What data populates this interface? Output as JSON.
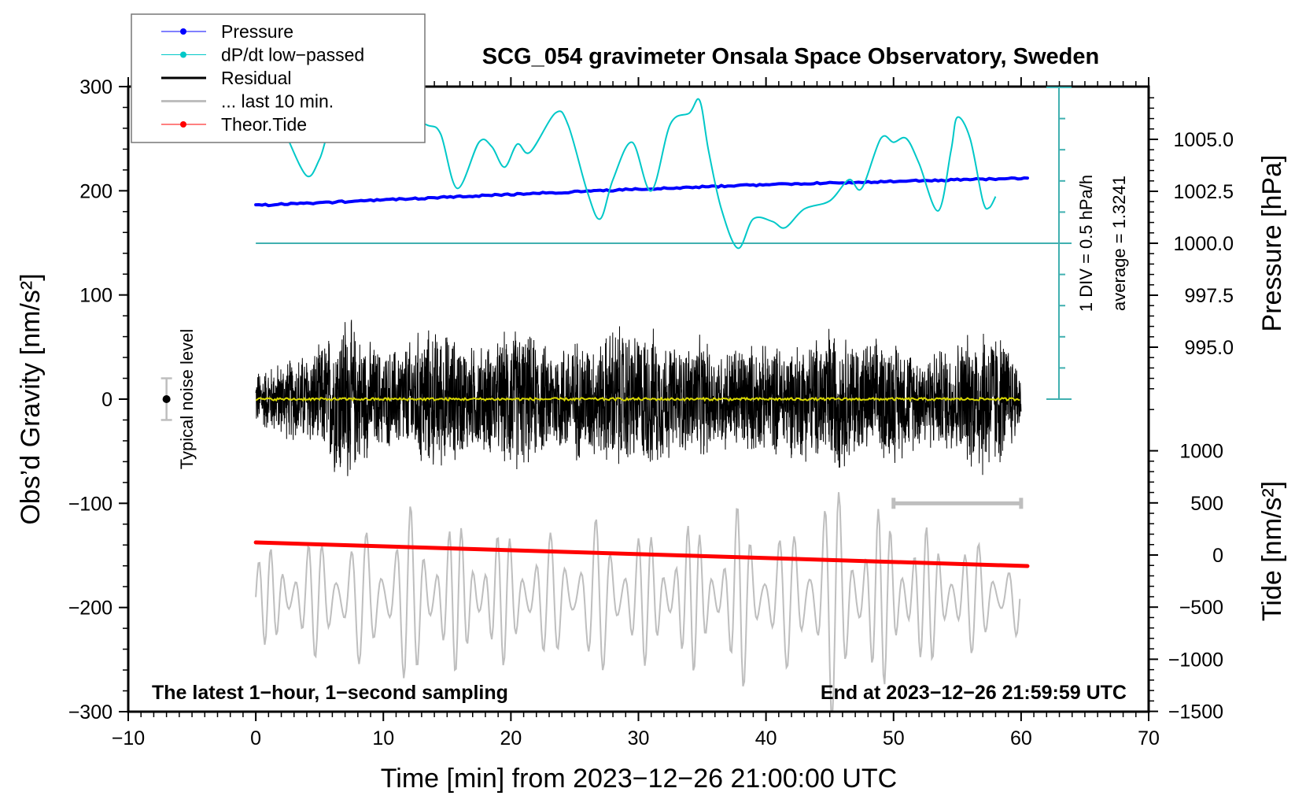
{
  "chart_data": {
    "type": "line",
    "title": "SCG_054 gravimeter Onsala Space Observatory, Sweden",
    "xlabel": "Time [min] from 2023−12−26 21:00:00 UTC",
    "ylabel_left": "Obs’d Gravity [nm/s²]",
    "ylabel_right_pressure": "Pressure [hPa]",
    "ylabel_right_tide": "Tide [nm/s²]",
    "xlim": [
      -10,
      70
    ],
    "ylim": [
      -300,
      300
    ],
    "x_ticks": [
      "−10",
      "0",
      "10",
      "20",
      "30",
      "40",
      "50",
      "60",
      "70"
    ],
    "y_ticks": [
      "300",
      "200",
      "100",
      "0",
      "−100",
      "−200",
      "−300"
    ],
    "pressure_ticks": [
      "1005.0",
      "1002.5",
      "1000.0",
      "997.5",
      "995.0"
    ],
    "tide_ticks": [
      "1000",
      "500",
      "0",
      "−500",
      "−1000",
      "−1500"
    ],
    "legend": {
      "placement": "top-left",
      "entries": [
        {
          "label": "Pressure",
          "color": "#0000ff",
          "marker": "dot"
        },
        {
          "label": "dP/dt low−passed",
          "color": "#00c8c8",
          "marker": "dot"
        },
        {
          "label": "Residual",
          "color": "#000000",
          "marker": "line"
        },
        {
          "label": "... last 10 min.",
          "color": "#bebebe",
          "marker": "line"
        },
        {
          "label": "Theor.Tide",
          "color": "#ff0000",
          "marker": "dot"
        }
      ]
    },
    "annotations": {
      "bottom_left": "The latest 1−hour, 1−second sampling",
      "bottom_right": "End at 2023−12−26 21:59:59 UTC",
      "dpdt_scale": "1 DIV = 0.5 hPa/h",
      "dpdt_average": "average = 1.3241",
      "noise_label": "Typical noise level"
    },
    "noise_level": {
      "x": -7,
      "center": 0,
      "half_range": 20
    },
    "last10_scale_bar": {
      "x_range": [
        50,
        60
      ],
      "y": -100
    },
    "pressure": {
      "x": [
        0,
        10,
        20,
        30,
        40,
        50,
        60.5
      ],
      "values": [
        1001.82,
        1002.08,
        1002.35,
        1002.6,
        1002.82,
        1002.98,
        1003.14
      ]
    },
    "dpdt": {
      "unit": "hPa/h",
      "x": [
        2.5,
        4,
        5,
        6,
        8,
        10,
        12,
        13.5,
        14.5,
        15.8,
        17.5,
        18.5,
        19.5,
        20.5,
        21.5,
        23.5,
        24.5,
        26,
        27,
        28,
        29.5,
        31,
        32.5,
        34,
        34.8,
        35.5,
        36.5,
        37.8,
        39,
        40.5,
        41.5,
        43,
        45,
        46.5,
        47.5,
        49,
        50,
        51,
        52,
        53.5,
        54.5,
        55,
        56,
        57,
        57.5,
        58
      ],
      "values": [
        1.68,
        1.08,
        1.35,
        1.89,
        2.0,
        1.7,
        1.95,
        1.89,
        1.75,
        0.88,
        1.62,
        1.55,
        1.22,
        1.59,
        1.46,
        2.09,
        1.89,
        0.82,
        0.39,
        1.02,
        1.62,
        0.84,
        1.91,
        2.09,
        2.29,
        1.48,
        0.55,
        -0.08,
        0.39,
        0.35,
        0.25,
        0.55,
        0.68,
        1.02,
        0.88,
        1.68,
        1.62,
        1.68,
        1.28,
        0.52,
        1.48,
        2.02,
        1.68,
        0.68,
        0.57,
        0.75
      ]
    },
    "tide": {
      "x": [
        0,
        60.5
      ],
      "values": [
        121,
        -106
      ]
    },
    "residual": {
      "x_range": [
        0,
        60
      ],
      "envelope_x": [
        0,
        3,
        5,
        7,
        8,
        10,
        12,
        13,
        15,
        17,
        19,
        20,
        23,
        25,
        27,
        28,
        30,
        31,
        33,
        35,
        36,
        38,
        40,
        42,
        44,
        45,
        46,
        48,
        50,
        52,
        54,
        56,
        57,
        58,
        59,
        60
      ],
      "envelope": [
        30,
        45,
        55,
        95,
        70,
        50,
        60,
        75,
        70,
        55,
        60,
        80,
        55,
        65,
        60,
        80,
        70,
        75,
        55,
        65,
        50,
        60,
        55,
        60,
        65,
        80,
        70,
        60,
        65,
        50,
        55,
        70,
        85,
        75,
        60,
        30
      ],
      "filtered_level": 0
    },
    "last10": {
      "center": -190,
      "envelope_x": [
        0,
        5,
        10,
        12,
        15,
        20,
        25,
        27,
        30,
        35,
        37,
        38,
        40,
        44,
        45,
        46,
        48,
        50,
        52,
        55,
        58,
        60
      ],
      "envelope": [
        45,
        60,
        70,
        90,
        75,
        65,
        60,
        80,
        65,
        75,
        60,
        100,
        55,
        90,
        120,
        110,
        80,
        95,
        70,
        60,
        50,
        40
      ]
    }
  }
}
